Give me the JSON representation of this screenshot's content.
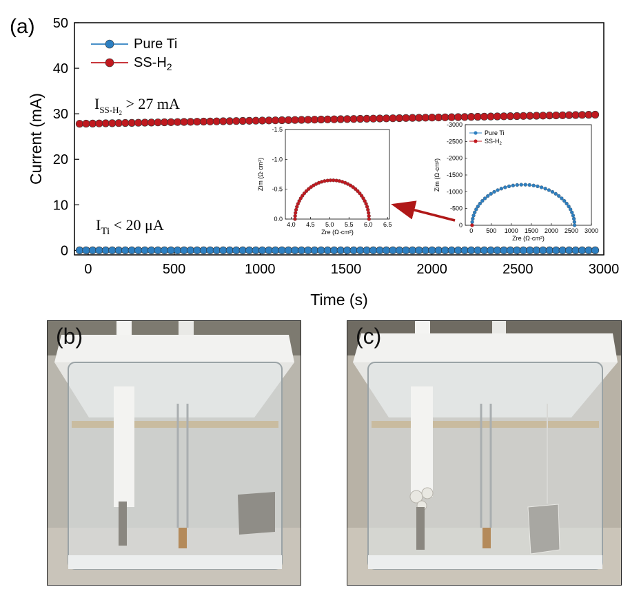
{
  "panel_a_label": "(a)",
  "panel_b_label": "(b)",
  "panel_c_label": "(c)",
  "annotations": {
    "ss_prefix": "I",
    "ss_sub": "SS-H",
    "ss_sub2": "2",
    "ss_value": "> 27 mA",
    "ti_prefix": "I",
    "ti_sub": "Ti",
    "ti_value": "< 20 μA"
  },
  "colors": {
    "pure_ti": "#2d7fc1",
    "ss_h2": "#c0191f"
  },
  "chart_data": [
    {
      "type": "line",
      "xlabel": "Time (s)",
      "ylabel": "Current (mA)",
      "xlim": [
        -80,
        3000
      ],
      "ylim": [
        -1,
        50
      ],
      "xticks": [
        0,
        500,
        1000,
        1500,
        2000,
        2500,
        3000
      ],
      "yticks": [
        0,
        10,
        20,
        30,
        40,
        50
      ],
      "legend_position": "top-left",
      "series": [
        {
          "name": "Pure Ti",
          "x_start": -50,
          "x_end": 2950,
          "count": 80,
          "y_start": 0,
          "y_end": 0
        },
        {
          "name": "SS-H",
          "name_sub": "2",
          "x_start": -50,
          "x_end": 2950,
          "count": 80,
          "y_start": 27.8,
          "y_end": 29.8
        }
      ]
    },
    {
      "type": "line",
      "role": "inset-left",
      "xlabel": "Zre (Ω·cm²)",
      "ylabel": "Zim (Ω·cm²)",
      "xlim": [
        3.85,
        6.55
      ],
      "ylim": [
        0,
        -1.5
      ],
      "xticks": [
        4.0,
        4.5,
        5.0,
        5.5,
        6.0,
        6.5
      ],
      "yticks": [
        0.0,
        -0.5,
        -1.0,
        -1.5
      ],
      "series": [
        {
          "name": "SS-H2",
          "shape": "semicircle",
          "zre_start": 4.1,
          "zre_end": 6.02,
          "peak": -0.65,
          "count": 40
        }
      ]
    },
    {
      "type": "line",
      "role": "inset-right",
      "xlabel": "Zre (Ω·cm²)",
      "ylabel": "Zim (Ω·cm²)",
      "xlim": [
        -150,
        3000
      ],
      "ylim": [
        0,
        -3000
      ],
      "xticks": [
        0,
        500,
        1000,
        1500,
        2000,
        2500,
        3000
      ],
      "yticks": [
        0,
        -500,
        -1000,
        -1500,
        -2000,
        -2500,
        -3000
      ],
      "legend_position": "top-left",
      "series": [
        {
          "name": "Pure Ti",
          "shape": "semicircle",
          "zre_start": 20,
          "zre_end": 2580,
          "peak": -1210,
          "count": 40
        },
        {
          "name": "SS-H",
          "name_sub": "2",
          "shape": "dot",
          "zre": 20,
          "zim": 0
        }
      ]
    }
  ]
}
